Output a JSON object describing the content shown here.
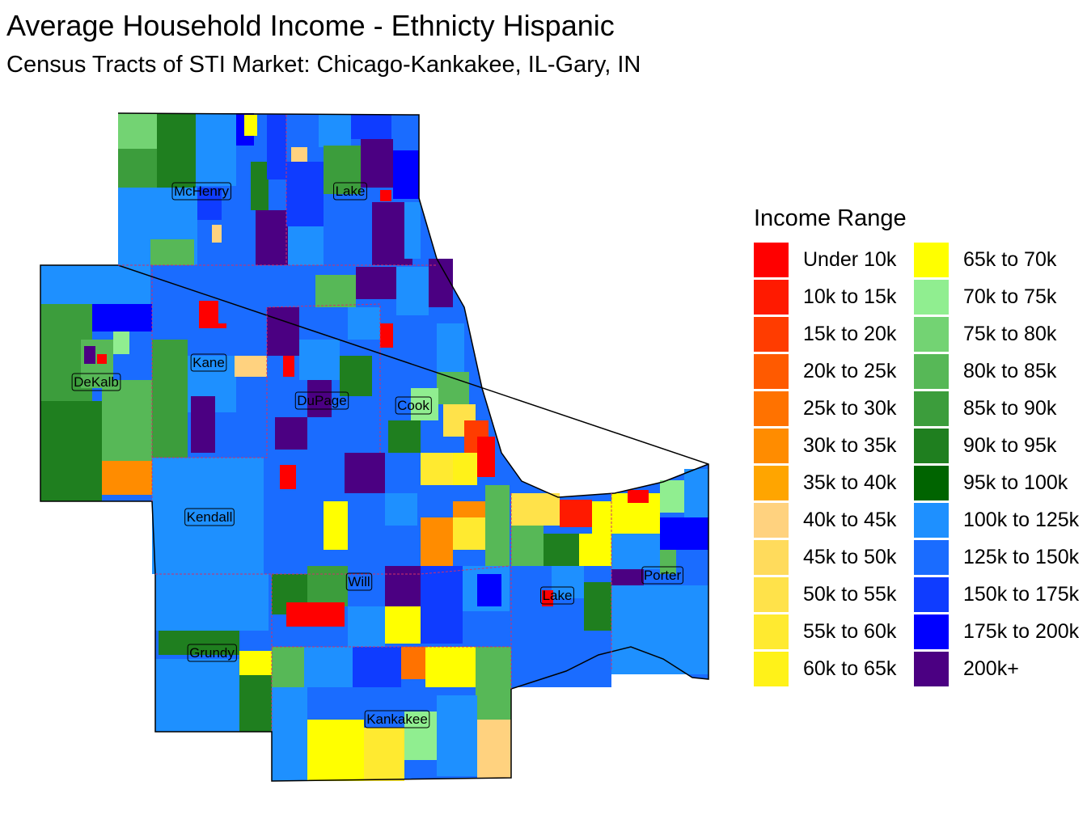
{
  "title": "Average Household Income - Ethnicty Hispanic",
  "subtitle": "Census Tracts of STI Market: Chicago-Kankakee, IL-Gary, IN",
  "legend": {
    "title": "Income Range",
    "items": [
      {
        "label": "Under 10k",
        "color": "#ff0000"
      },
      {
        "label": "10k to 15k",
        "color": "#ff1a00"
      },
      {
        "label": "15k to 20k",
        "color": "#ff3c00"
      },
      {
        "label": "20k to 25k",
        "color": "#ff5a00"
      },
      {
        "label": "25k to 30k",
        "color": "#ff7200"
      },
      {
        "label": "30k to 35k",
        "color": "#ff8c00"
      },
      {
        "label": "35k to 40k",
        "color": "#ffa500"
      },
      {
        "label": "40k to 45k",
        "color": "#ffd27f"
      },
      {
        "label": "45k to 50k",
        "color": "#ffdb5c"
      },
      {
        "label": "50k to 55k",
        "color": "#ffe24a"
      },
      {
        "label": "55k to 60k",
        "color": "#ffea30"
      },
      {
        "label": "60k to 65k",
        "color": "#fff219"
      },
      {
        "label": "65k to 70k",
        "color": "#ffff00"
      },
      {
        "label": "70k to 75k",
        "color": "#90ee90"
      },
      {
        "label": "75k to 80k",
        "color": "#73d373"
      },
      {
        "label": "80k to 85k",
        "color": "#57b857"
      },
      {
        "label": "85k to 90k",
        "color": "#3c9d3c"
      },
      {
        "label": "90k to 95k",
        "color": "#1f7f1f"
      },
      {
        "label": "95k to 100k",
        "color": "#006400"
      },
      {
        "label": "100k to 125k",
        "color": "#1e90ff"
      },
      {
        "label": "125k to 150k",
        "color": "#1a6cff"
      },
      {
        "label": "150k to 175k",
        "color": "#0f3cff"
      },
      {
        "label": "175k to 200k",
        "color": "#0000ff"
      },
      {
        "label": "200k+",
        "color": "#4b0082"
      }
    ]
  },
  "counties": [
    "McHenry",
    "Lake",
    "DeKalb",
    "Kane",
    "DuPage",
    "Cook",
    "Kendall",
    "Will",
    "Grundy",
    "Kankakee",
    "Lake",
    "Porter"
  ]
}
